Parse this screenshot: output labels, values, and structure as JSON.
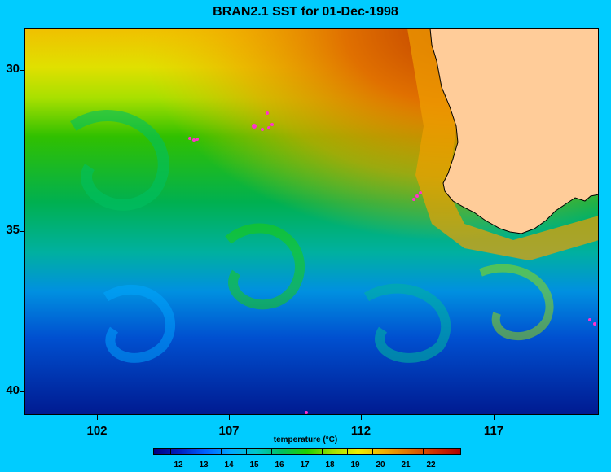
{
  "title": "BRAN2.1 SST for 01-Dec-1998",
  "y_axis": {
    "labels": [
      "30",
      "35",
      "40"
    ]
  },
  "x_axis": {
    "labels": [
      "102",
      "107",
      "112",
      "117"
    ]
  },
  "colorbar": {
    "title": "temperature (°C)",
    "labels": [
      "12",
      "13",
      "14",
      "15",
      "16",
      "17",
      "18",
      "19",
      "20",
      "21",
      "22"
    ],
    "colors": [
      "#000080",
      "#0020c0",
      "#0060ff",
      "#00a8ff",
      "#00c8c8",
      "#00c060",
      "#20d000",
      "#a0e000",
      "#f0f000",
      "#f0b000",
      "#e07000",
      "#d03000",
      "#b00000"
    ]
  },
  "map_colors": {
    "land": "#ffcc99",
    "islands": "#ff33cc"
  }
}
